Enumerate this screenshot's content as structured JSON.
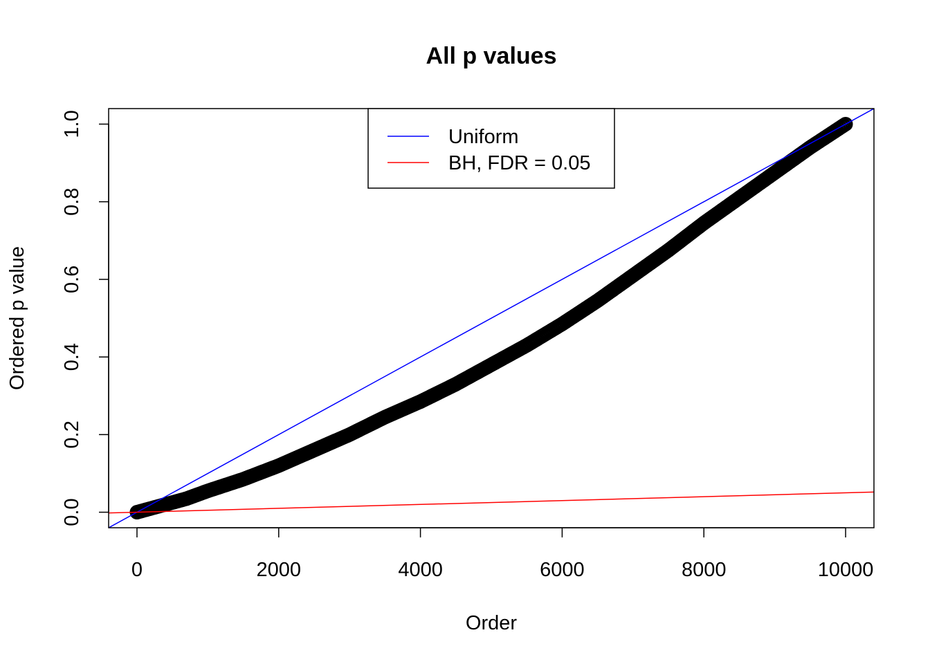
{
  "chart_data": {
    "type": "scatter",
    "title": "All p values",
    "xlabel": "Order",
    "ylabel": "Ordered p value",
    "xlim": [
      -400,
      10400
    ],
    "ylim": [
      -0.04,
      1.04
    ],
    "x_ticks": [
      0,
      2000,
      4000,
      6000,
      8000,
      10000
    ],
    "x_tick_labels": [
      "0",
      "2000",
      "4000",
      "6000",
      "8000",
      "10000"
    ],
    "y_ticks": [
      0,
      0.2,
      0.4,
      0.6,
      0.8,
      1.0
    ],
    "y_tick_labels": [
      "0.0",
      "0.2",
      "0.4",
      "0.6",
      "0.8",
      "1.0"
    ],
    "grid": false,
    "legend_position": "top",
    "series": [
      {
        "type": "scatter",
        "color": "#000000",
        "x": [
          0,
          100,
          200,
          300,
          500,
          700,
          1000,
          1500,
          2000,
          2500,
          3000,
          3500,
          4000,
          4500,
          5000,
          5500,
          6000,
          6500,
          7000,
          7500,
          8000,
          8500,
          9000,
          9500,
          10000
        ],
        "values": [
          0.0,
          0.005,
          0.01,
          0.015,
          0.025,
          0.035,
          0.055,
          0.085,
          0.12,
          0.16,
          0.2,
          0.245,
          0.285,
          0.33,
          0.38,
          0.43,
          0.485,
          0.545,
          0.61,
          0.675,
          0.745,
          0.81,
          0.875,
          0.94,
          1.0
        ]
      },
      {
        "type": "line",
        "name": "Uniform",
        "color": "#0000ff",
        "x": [
          0,
          10000
        ],
        "values": [
          0.0,
          1.0
        ]
      },
      {
        "type": "line",
        "name": "BH, FDR = 0.05",
        "color": "#ff0000",
        "x": [
          0,
          10000
        ],
        "values": [
          0.0,
          0.05
        ]
      }
    ]
  }
}
